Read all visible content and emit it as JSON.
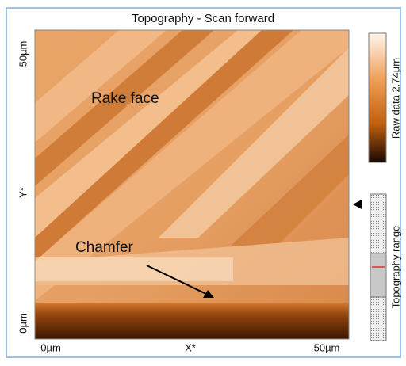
{
  "header": {
    "title": "Topography - Scan forward"
  },
  "image": {
    "annotations": [
      "Rake face",
      "Chamfer"
    ]
  },
  "axes": {
    "x": {
      "label": "X*",
      "ticks": [
        "0µm",
        "50µm"
      ]
    },
    "y": {
      "label": "Y*",
      "ticks": [
        "50µm",
        "0µm"
      ]
    }
  },
  "colorbar": {
    "label": "Raw data 2.74µm"
  },
  "range_panel": {
    "label": "Topography range"
  }
}
